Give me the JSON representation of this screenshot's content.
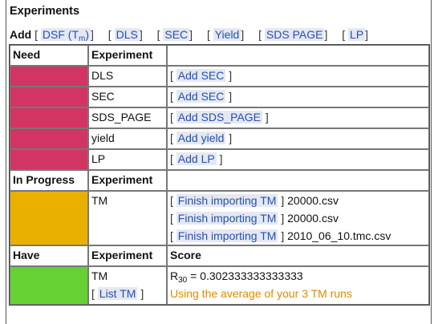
{
  "page": {
    "title": "Experiments",
    "add_label": "Add",
    "add_links": [
      {
        "label": "DSF (T",
        "sub": "m",
        "suffix": ")"
      },
      {
        "label": "DLS"
      },
      {
        "label": "SEC"
      },
      {
        "label": "Yield"
      },
      {
        "label": "SDS PAGE"
      },
      {
        "label": "LP"
      }
    ]
  },
  "colors": {
    "need": "#d23464",
    "in_progress": "#eab000",
    "have": "#66d132",
    "link": "#2250b8",
    "link_bg": "#e6e8f1",
    "note": "#e08a00"
  },
  "need": {
    "header": "Need",
    "col_experiment": "Experiment",
    "rows": [
      {
        "experiment": "DLS",
        "action": "Add SEC"
      },
      {
        "experiment": "SEC",
        "action": "Add SEC"
      },
      {
        "experiment": "SDS_PAGE",
        "action": "Add SDS_PAGE"
      },
      {
        "experiment": "yield",
        "action": "Add yield"
      },
      {
        "experiment": "LP",
        "action": "Add LP"
      }
    ]
  },
  "in_progress": {
    "header": "In Progress",
    "col_experiment": "Experiment",
    "experiment": "TM",
    "actions": [
      {
        "action": "Finish importing TM",
        "file": "20000.csv"
      },
      {
        "action": "Finish importing TM",
        "file": "20000.csv"
      },
      {
        "action": "Finish importing TM",
        "file": "2010_06_10.tmc.csv"
      }
    ]
  },
  "have": {
    "header": "Have",
    "col_experiment": "Experiment",
    "col_score": "Score",
    "experiment": "TM",
    "list_action": "List TM",
    "score_symbol": "R",
    "score_sub": "30",
    "score_value": "= 0.302333333333333",
    "note": "Using the average of your 3 TM runs"
  }
}
